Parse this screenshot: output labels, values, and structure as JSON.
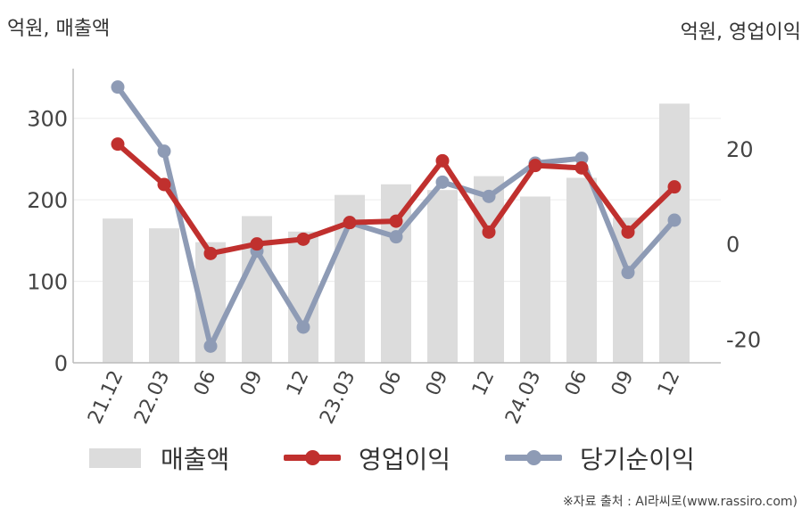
{
  "unit_left": "억원, 매출액",
  "unit_right": "억원, 영업이익",
  "source": "※자료 출처 : AI라씨로(www.rassiro.com)",
  "colors": {
    "revenue": "#dcdcdc",
    "operating": "#c0302e",
    "net": "#8e9bb5",
    "grid": "#ececec",
    "axis": "#bbbbbb"
  },
  "chart_data": {
    "type": "bar",
    "categories": [
      "21.12",
      "22.03",
      "06",
      "09",
      "12",
      "23.03",
      "06",
      "09",
      "12",
      "24.03",
      "06",
      "09",
      "12"
    ],
    "ylim_left": [
      0,
      350
    ],
    "yticks_left": [
      0,
      100,
      200,
      300
    ],
    "ylim_right": [
      -25,
      35
    ],
    "yticks_right": [
      -20,
      0,
      20
    ],
    "grid": true,
    "legend_position": "bottom",
    "series": [
      {
        "name": "매출액",
        "type": "bar",
        "axis": "left",
        "values": [
          177,
          165,
          148,
          180,
          161,
          206,
          219,
          212,
          229,
          204,
          227,
          178,
          318
        ]
      },
      {
        "name": "영업이익",
        "type": "line",
        "axis": "right",
        "values": [
          21,
          12.5,
          -2,
          0,
          1,
          4.5,
          4.8,
          17.5,
          2.5,
          16.5,
          16,
          2.5,
          12
        ]
      },
      {
        "name": "당기순이익",
        "type": "line",
        "axis": "right",
        "values": [
          33,
          19.5,
          -21.5,
          -1.5,
          -17.5,
          4.5,
          1.5,
          13,
          10,
          17,
          18,
          -6,
          5
        ]
      }
    ]
  }
}
